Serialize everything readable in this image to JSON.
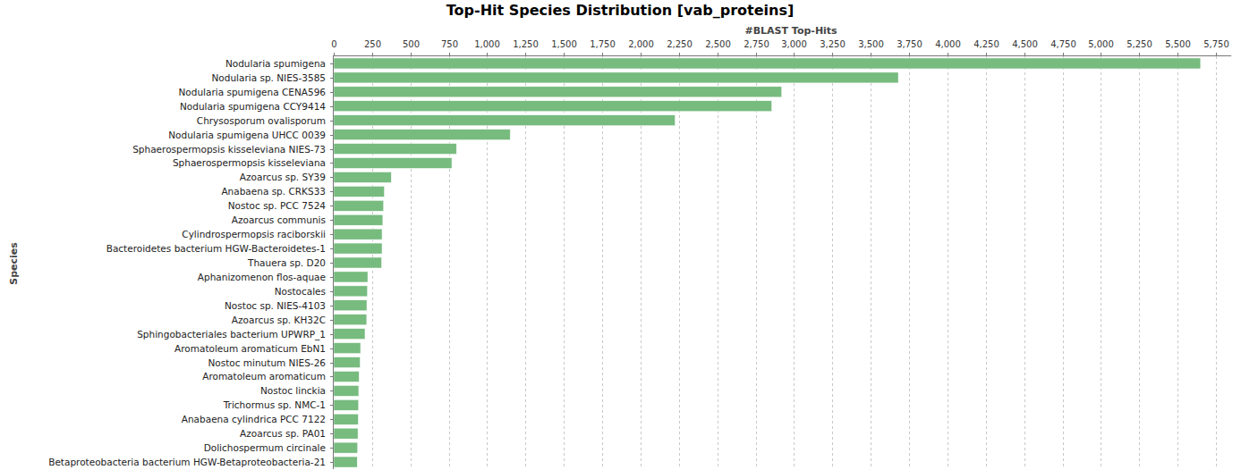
{
  "chart_data": {
    "type": "bar",
    "orientation": "horizontal",
    "title": "Top-Hit Species Distribution [vab_proteins]",
    "x_label": "#BLAST Top-Hits",
    "y_label": "Species",
    "categories": [
      "Nodularia spumigena",
      "Nodularia sp. NIES-3585",
      "Nodularia spumigena CENA596",
      "Nodularia spumigena CCY9414",
      "Chrysosporum ovalisporum",
      "Nodularia spumigena UHCC 0039",
      "Sphaerospermopsis kisseleviana NIES-73",
      "Sphaerospermopsis kisseleviana",
      "Azoarcus sp. SY39",
      "Anabaena sp. CRKS33",
      "Nostoc sp. PCC 7524",
      "Azoarcus communis",
      "Cylindrospermopsis raciborskii",
      "Bacteroidetes bacterium HGW-Bacteroidetes-1",
      "Thauera sp. D20",
      "Aphanizomenon flos-aquae",
      "Nostocales",
      "Nostoc sp. NIES-4103",
      "Azoarcus sp. KH32C",
      "Sphingobacteriales bacterium UPWRP_1",
      "Aromatoleum aromaticum EbN1",
      "Nostoc minutum NIES-26",
      "Aromatoleum aromaticum",
      "Nostoc linckia",
      "Trichormus sp. NMC-1",
      "Anabaena cylindrica PCC 7122",
      "Azoarcus sp. PA01",
      "Dolichospermum circinale",
      "Betaproteobacteria bacterium HGW-Betaproteobacteria-21"
    ],
    "values": [
      5650,
      3680,
      2920,
      2855,
      2225,
      1150,
      800,
      770,
      375,
      330,
      325,
      320,
      315,
      315,
      312,
      222,
      220,
      216,
      215,
      204,
      175,
      172,
      165,
      163,
      162,
      160,
      158,
      156,
      153
    ],
    "color": "#77bb7f",
    "xlim": [
      0,
      5850
    ],
    "xticks": [
      0,
      250,
      500,
      750,
      {
        "value": 1000,
        "label": "1,000"
      },
      {
        "value": 1250,
        "label": "1,250"
      },
      {
        "value": 1500,
        "label": "1,500"
      },
      {
        "value": 1750,
        "label": "1,750"
      },
      {
        "value": 2000,
        "label": "2,000"
      },
      {
        "value": 2250,
        "label": "2,250"
      },
      {
        "value": 2500,
        "label": "2,500"
      },
      {
        "value": 2750,
        "label": "2,750"
      },
      {
        "value": 3000,
        "label": "3,000"
      },
      {
        "value": 3250,
        "label": "3,250"
      },
      {
        "value": 3500,
        "label": "3,500"
      },
      {
        "value": 3750,
        "label": "3,750"
      },
      {
        "value": 4000,
        "label": "4,000"
      },
      {
        "value": 4250,
        "label": "4,250"
      },
      {
        "value": 4500,
        "label": "4,500"
      },
      {
        "value": 4750,
        "label": "4,750"
      },
      {
        "value": 5000,
        "label": "5,000"
      },
      {
        "value": 5250,
        "label": "5,250"
      },
      {
        "value": 5500,
        "label": "5,500"
      },
      {
        "value": 5750,
        "label": "5,750"
      }
    ],
    "grid": true
  }
}
